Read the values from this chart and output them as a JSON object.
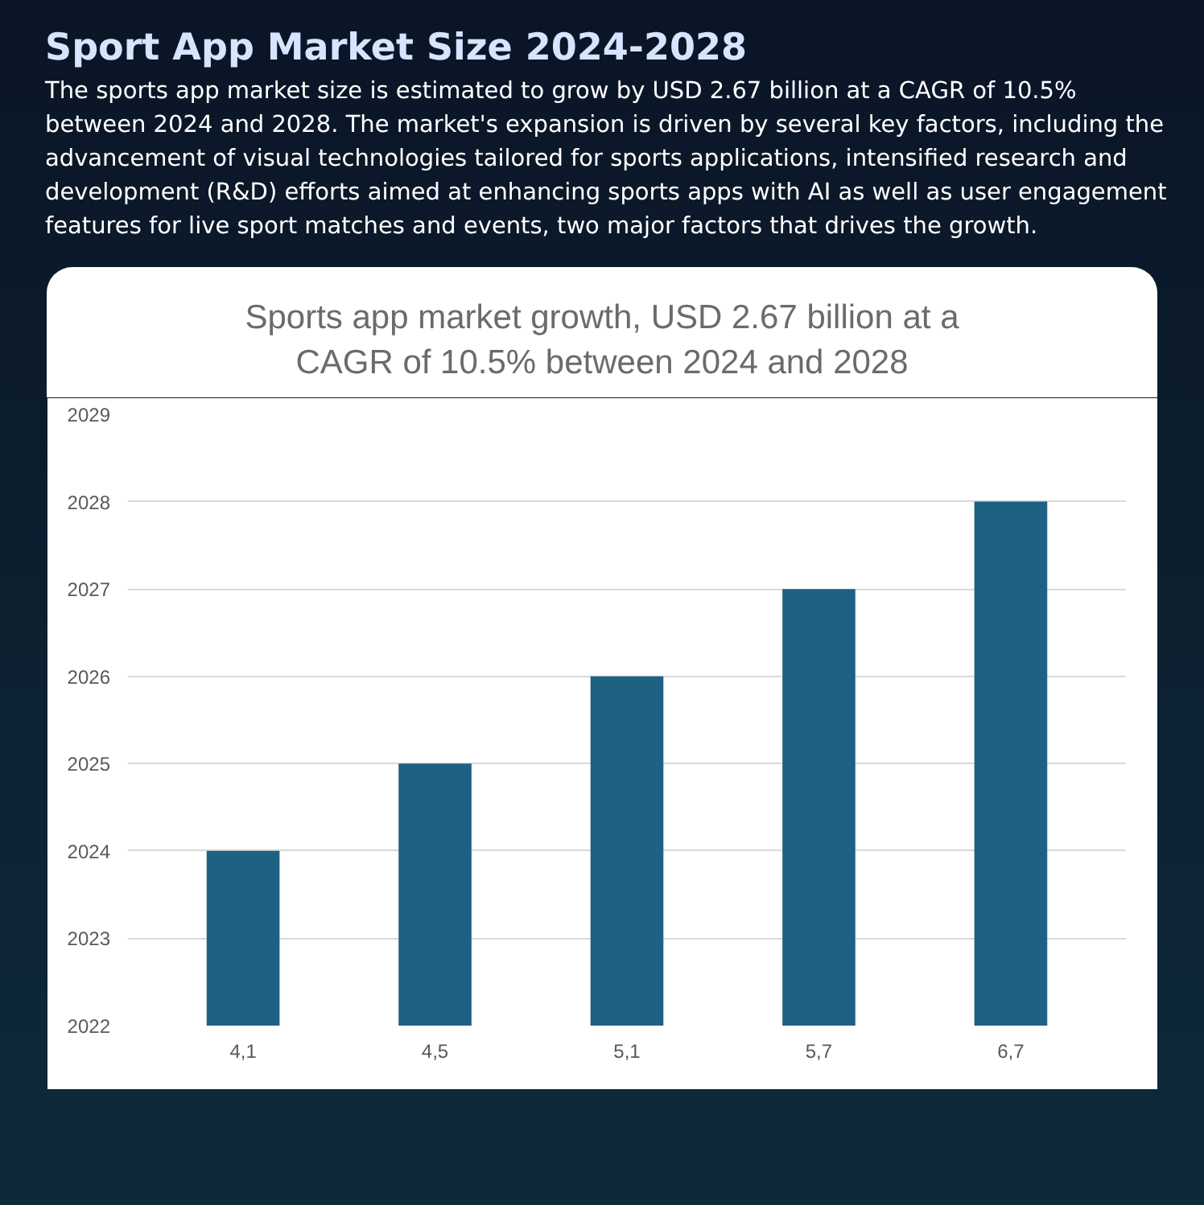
{
  "chart_data": {
    "type": "bar",
    "title": "Sports app market growth, USD 2.67 billion at a CAGR of 10.5% between 2024 and 2028",
    "annotations": [
      "Sport App Market Size 2024-2028",
      "The sports app market size is estimated to grow by USD 2.67 billion at a CAGR of 10.5% between 2024 and 2028. The market's expansion is driven by several key factors, including the advancement of visual technologies tailored for sports applications, intensified research and development (R&D) efforts aimed at enhancing sports apps with AI as well as user engagement features for live sport matches and events, two major factors that drives the growth."
    ],
    "categories": [
      "4,1",
      "4,5",
      "5,1",
      "5,7",
      "6,7"
    ],
    "values": [
      2024,
      2025,
      2026,
      2027,
      2028
    ],
    "color": "#1e6283",
    "ylim": [
      2022,
      2029
    ],
    "yticks": [
      2022,
      2023,
      2024,
      2025,
      2026,
      2027,
      2028,
      2029
    ],
    "grid": "y"
  }
}
